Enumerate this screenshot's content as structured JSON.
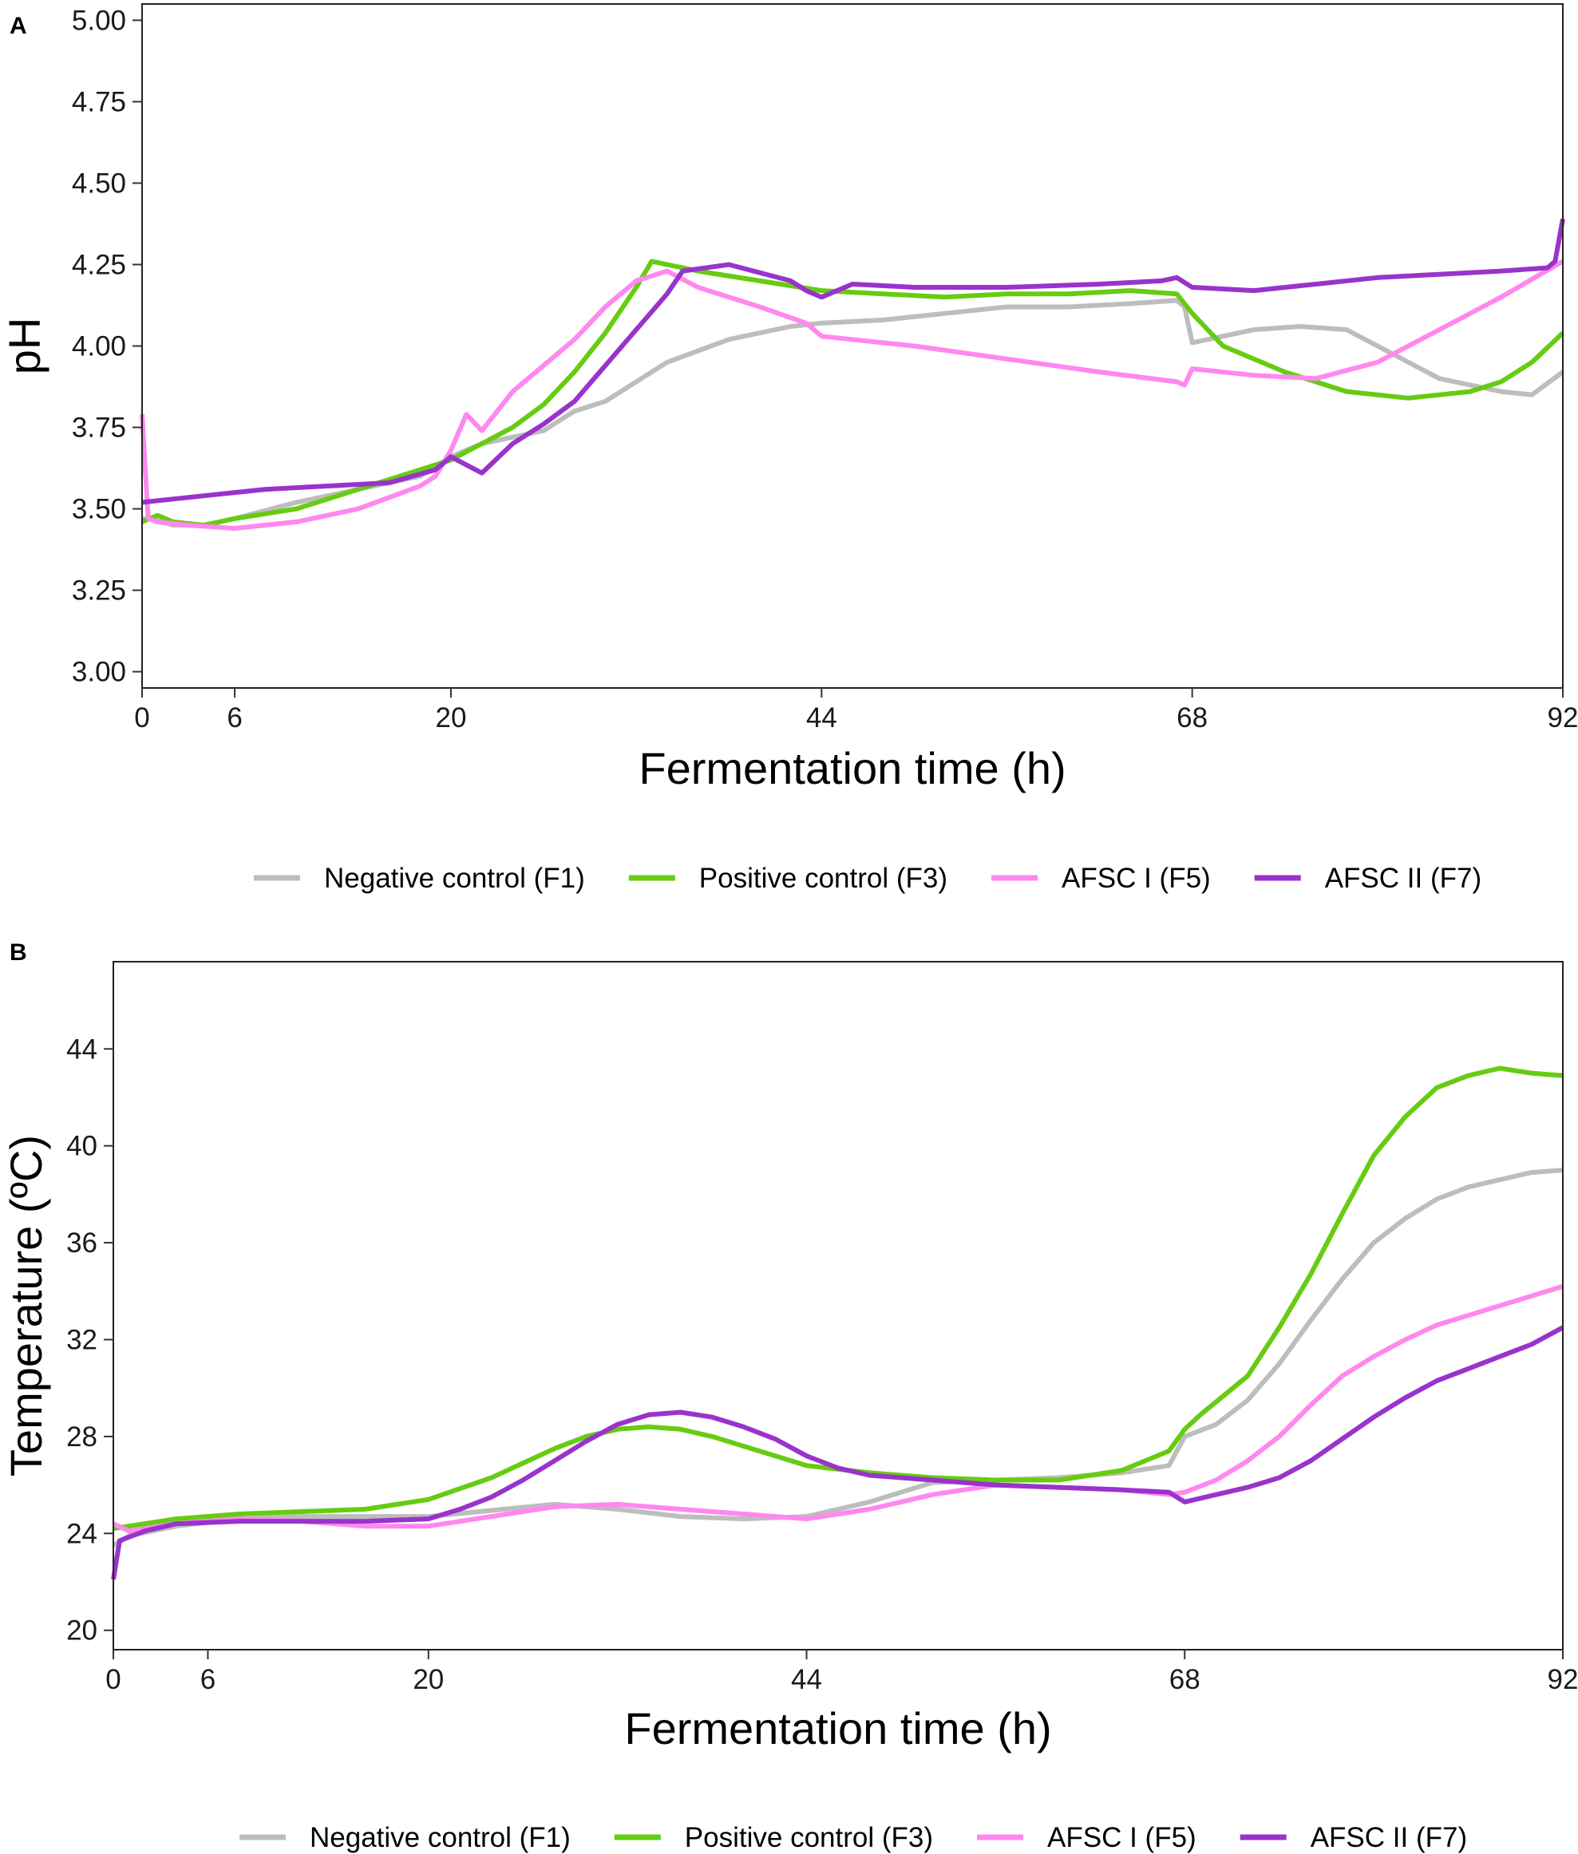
{
  "chart_data": [
    {
      "panel": "A",
      "type": "line",
      "xlabel": "Fermentation time (h)",
      "ylabel": "pH",
      "xlim": [
        0,
        92
      ],
      "ylim": [
        2.95,
        5.05
      ],
      "xticks": [
        0,
        6,
        20,
        44,
        68,
        92
      ],
      "yticks": [
        3.0,
        3.25,
        3.5,
        3.75,
        4.0,
        4.25,
        4.5,
        4.75,
        5.0
      ],
      "ytick_labels": [
        "3.00",
        "3.25",
        "3.50",
        "3.75",
        "4.00",
        "4.25",
        "4.50",
        "4.75",
        "5.00"
      ],
      "legend": {
        "position": "bottom",
        "items": [
          {
            "label": "Negative control (F1)",
            "color": "#bdbdbd"
          },
          {
            "label": "Positive control (F3)",
            "color": "#66cc11"
          },
          {
            "label": "AFSC I (F5)",
            "color": "#ff88ee"
          },
          {
            "label": "AFSC II (F7)",
            "color": "#9933cc"
          }
        ]
      },
      "series": [
        {
          "name": "Negative control (F1)",
          "color": "#bdbdbd",
          "x": [
            0,
            0.5,
            2,
            4,
            6,
            10,
            14,
            18,
            20,
            22,
            26,
            28,
            30,
            34,
            38,
            42,
            44,
            48,
            52,
            56,
            60,
            64,
            67,
            67.5,
            68,
            72,
            75,
            78,
            80,
            84,
            88,
            90,
            92
          ],
          "y": [
            3.47,
            3.47,
            3.45,
            3.45,
            3.47,
            3.52,
            3.56,
            3.6,
            3.66,
            3.7,
            3.74,
            3.8,
            3.83,
            3.95,
            4.02,
            4.06,
            4.07,
            4.08,
            4.1,
            4.12,
            4.12,
            4.13,
            4.14,
            4.12,
            4.01,
            4.05,
            4.06,
            4.05,
            4.0,
            3.9,
            3.86,
            3.85,
            3.92
          ]
        },
        {
          "name": "Positive control (F3)",
          "color": "#66cc11",
          "x": [
            0,
            1,
            2,
            4,
            6,
            10,
            14,
            18,
            20,
            22,
            24,
            26,
            28,
            30,
            32,
            33,
            36,
            40,
            44,
            48,
            52,
            56,
            60,
            64,
            67,
            68,
            70,
            74,
            78,
            82,
            84,
            86,
            88,
            90,
            92
          ],
          "y": [
            3.46,
            3.48,
            3.46,
            3.45,
            3.47,
            3.5,
            3.56,
            3.62,
            3.65,
            3.7,
            3.75,
            3.82,
            3.92,
            4.04,
            4.18,
            4.26,
            4.23,
            4.2,
            4.17,
            4.16,
            4.15,
            4.16,
            4.16,
            4.17,
            4.16,
            4.1,
            4.0,
            3.92,
            3.86,
            3.84,
            3.85,
            3.86,
            3.89,
            3.95,
            4.04
          ]
        },
        {
          "name": "AFSC I (F5)",
          "color": "#ff88ee",
          "x": [
            0,
            0.4,
            1,
            3,
            6,
            10,
            14,
            18,
            19,
            20,
            21,
            22,
            23,
            24,
            26,
            28,
            30,
            32,
            34,
            36,
            40,
            43,
            44,
            50,
            56,
            62,
            67,
            67.5,
            68,
            72,
            76,
            80,
            84,
            88,
            92
          ],
          "y": [
            3.79,
            3.47,
            3.46,
            3.45,
            3.44,
            3.46,
            3.5,
            3.57,
            3.6,
            3.68,
            3.79,
            3.74,
            3.8,
            3.86,
            3.94,
            4.02,
            4.12,
            4.2,
            4.23,
            4.18,
            4.12,
            4.07,
            4.03,
            4.0,
            3.96,
            3.92,
            3.89,
            3.88,
            3.93,
            3.91,
            3.9,
            3.95,
            4.05,
            4.15,
            4.26
          ]
        },
        {
          "name": "AFSC II (F7)",
          "color": "#9933cc",
          "x": [
            0,
            2,
            4,
            6,
            8,
            12,
            16,
            19,
            20,
            22,
            24,
            26,
            28,
            30,
            32,
            34,
            35,
            38,
            42,
            43,
            44,
            46,
            50,
            56,
            62,
            66,
            67,
            68,
            72,
            76,
            80,
            84,
            88,
            91,
            91.5,
            92
          ],
          "y": [
            3.52,
            3.53,
            3.54,
            3.55,
            3.56,
            3.57,
            3.58,
            3.62,
            3.66,
            3.61,
            3.7,
            3.76,
            3.83,
            3.94,
            4.05,
            4.16,
            4.23,
            4.25,
            4.2,
            4.17,
            4.15,
            4.19,
            4.18,
            4.18,
            4.19,
            4.2,
            4.21,
            4.18,
            4.17,
            4.19,
            4.21,
            4.22,
            4.23,
            4.24,
            4.26,
            4.39
          ]
        }
      ]
    },
    {
      "panel": "B",
      "type": "line",
      "xlabel": "Fermentation time (h)",
      "ylabel": "Temperature (ºC)",
      "xlim": [
        0,
        92
      ],
      "ylim": [
        19.2,
        47.6
      ],
      "xticks": [
        0,
        6,
        20,
        44,
        68,
        92
      ],
      "yticks": [
        20,
        24,
        28,
        32,
        36,
        40,
        44
      ],
      "ytick_labels": [
        "20",
        "24",
        "28",
        "32",
        "36",
        "40",
        "44"
      ],
      "legend": {
        "position": "bottom",
        "items": [
          {
            "label": "Negative control (F1)",
            "color": "#bdbdbd"
          },
          {
            "label": "Positive control (F3)",
            "color": "#66cc11"
          },
          {
            "label": "AFSC I (F5)",
            "color": "#ff88ee"
          },
          {
            "label": "AFSC II (F7)",
            "color": "#9933cc"
          }
        ]
      },
      "series": [
        {
          "name": "Negative control (F1)",
          "color": "#bdbdbd",
          "x": [
            0,
            1,
            4,
            8,
            12,
            20,
            28,
            32,
            36,
            40,
            44,
            48,
            52,
            56,
            60,
            64,
            67,
            68,
            70,
            72,
            74,
            76,
            78,
            80,
            82,
            84,
            86,
            88,
            90,
            92
          ],
          "y": [
            23.5,
            23.9,
            24.3,
            24.6,
            24.7,
            24.7,
            25.2,
            25.0,
            24.7,
            24.6,
            24.7,
            25.3,
            26.1,
            26.2,
            26.3,
            26.5,
            26.8,
            28.0,
            28.5,
            29.5,
            31.0,
            32.8,
            34.5,
            36.0,
            37.0,
            37.8,
            38.3,
            38.6,
            38.9,
            39.0
          ]
        },
        {
          "name": "Positive control (F3)",
          "color": "#66cc11",
          "x": [
            0,
            1,
            4,
            8,
            12,
            16,
            20,
            24,
            28,
            30,
            32,
            34,
            36,
            38,
            40,
            44,
            48,
            52,
            56,
            60,
            64,
            67,
            68,
            69,
            72,
            74,
            76,
            78,
            80,
            82,
            84,
            86,
            88,
            90,
            92
          ],
          "y": [
            24.2,
            24.3,
            24.6,
            24.8,
            24.9,
            25.0,
            25.4,
            26.3,
            27.5,
            28.0,
            28.3,
            28.4,
            28.3,
            28.0,
            27.6,
            26.8,
            26.5,
            26.3,
            26.2,
            26.2,
            26.6,
            27.4,
            28.3,
            28.9,
            30.5,
            32.5,
            34.7,
            37.2,
            39.6,
            41.2,
            42.4,
            42.9,
            43.2,
            43.0,
            42.9
          ]
        },
        {
          "name": "AFSC I (F5)",
          "color": "#ff88ee",
          "x": [
            0,
            1,
            4,
            8,
            12,
            16,
            20,
            24,
            28,
            32,
            36,
            40,
            44,
            48,
            52,
            56,
            60,
            64,
            67,
            68,
            70,
            72,
            74,
            76,
            78,
            80,
            82,
            84,
            86,
            88,
            90,
            92
          ],
          "y": [
            24.4,
            24.1,
            24.4,
            24.6,
            24.5,
            24.3,
            24.3,
            24.7,
            25.1,
            25.2,
            25.0,
            24.8,
            24.6,
            25.0,
            25.6,
            26.0,
            25.9,
            25.8,
            25.6,
            25.7,
            26.2,
            27.0,
            28.0,
            29.3,
            30.5,
            31.3,
            32.0,
            32.6,
            33.0,
            33.4,
            33.8,
            34.2
          ]
        },
        {
          "name": "AFSC II (F7)",
          "color": "#9933cc",
          "x": [
            0,
            0.4,
            2,
            4,
            8,
            12,
            16,
            20,
            22,
            24,
            26,
            28,
            30,
            32,
            34,
            36,
            38,
            40,
            42,
            44,
            46,
            48,
            52,
            56,
            60,
            64,
            67,
            68,
            70,
            72,
            74,
            76,
            78,
            80,
            82,
            84,
            86,
            88,
            90,
            92
          ],
          "y": [
            22.1,
            23.7,
            24.1,
            24.4,
            24.5,
            24.5,
            24.5,
            24.6,
            25.0,
            25.5,
            26.2,
            27.0,
            27.8,
            28.5,
            28.9,
            29.0,
            28.8,
            28.4,
            27.9,
            27.2,
            26.7,
            26.4,
            26.2,
            26.0,
            25.9,
            25.8,
            25.7,
            25.3,
            25.6,
            25.9,
            26.3,
            27.0,
            27.9,
            28.8,
            29.6,
            30.3,
            30.8,
            31.3,
            31.8,
            32.5
          ]
        }
      ]
    }
  ]
}
